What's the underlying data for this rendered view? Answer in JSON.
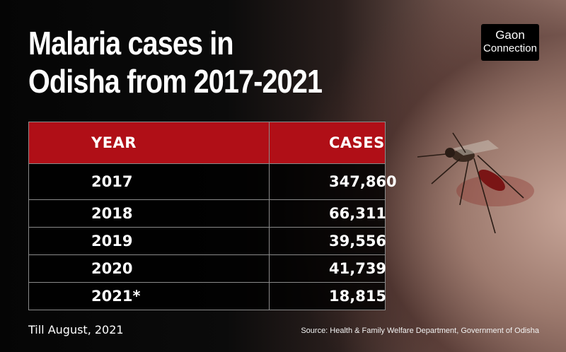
{
  "title_line1": "Malaria cases in",
  "title_line2": "Odisha from 2017-2021",
  "logo_line1": "Gaon",
  "logo_line2": "Connection",
  "chart_data": {
    "type": "table",
    "columns": [
      "YEAR",
      "CASES"
    ],
    "rows": [
      {
        "year": "2017",
        "cases": "347,860"
      },
      {
        "year": "2018",
        "cases": "66,311"
      },
      {
        "year": "2019",
        "cases": "39,556"
      },
      {
        "year": "2020",
        "cases": "41,739"
      },
      {
        "year": "2021*",
        "cases": "18,815"
      }
    ]
  },
  "footnote": "Till August, 2021",
  "source": "Source: Health & Family Welfare Department, Government of Odisha",
  "colors": {
    "header_red": "#b00f17",
    "background": "#0a0a0a"
  }
}
